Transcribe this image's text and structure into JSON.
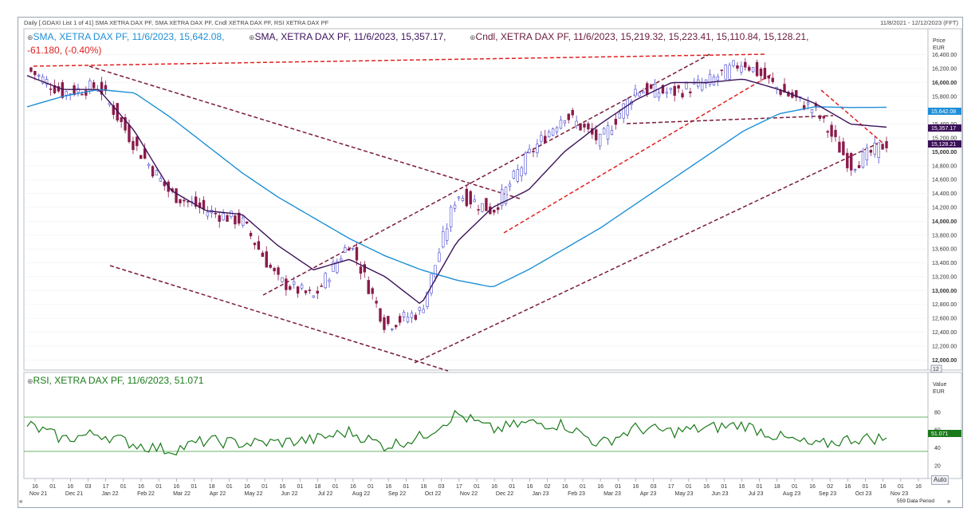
{
  "header": {
    "title_left": "Daily [.GDAXI List 1 of 41] SMA XETRA DAX PF, SMA XETRA DAX PF, Cndl XETRA DAX PF, RSI XETRA DAX PF",
    "title_right": "11/8/2021 - 12/12/2023 (FFT)"
  },
  "legend": {
    "sma_fast": "SMA, XETRA DAX PF, 11/6/2023, 15,642.08,",
    "sma_slow": "SMA, XETRA DAX PF, 11/6/2023, 15,357.17,",
    "cndl": "Cndl, XETRA DAX PF, 11/6/2023, 15,219.32, 15,223.41, 15,110.84, 15,128.21,",
    "change": "-61.180, (-0.40%)",
    "rsi": "RSI, XETRA DAX PF, 11/6/2023, 51.071"
  },
  "price_axis": {
    "title": "Price",
    "unit": "EUR",
    "ticks": [
      "16,400.00",
      "16,200.00",
      "16,000.00",
      "15,800.00",
      "15,600.00",
      "15,400.00",
      "15,200.00",
      "15,000.00",
      "14,800.00",
      "14,600.00",
      "14,400.00",
      "14,200.00",
      "14,000.00",
      "13,800.00",
      "13,600.00",
      "13,400.00",
      "13,200.00",
      "13,000.00",
      "12,800.00",
      "12,600.00",
      "12,400.00",
      "12,200.00",
      "12,000.00"
    ],
    "tag_sma_fast": "15,642.08",
    "tag_sma_slow": "15,357.17",
    "tag_price": "15,128.21",
    "scale_button": "12"
  },
  "rsi_axis": {
    "title": "Value",
    "unit": "EUR",
    "ticks": [
      "80",
      "60",
      "40",
      "20"
    ],
    "tag": "51.071"
  },
  "x_axis": {
    "days": [
      "16",
      "01",
      "16",
      "03",
      "17",
      "01",
      "16",
      "01",
      "16",
      "01",
      "18",
      "01",
      "16",
      "01",
      "16",
      "01",
      "18",
      "01",
      "16",
      "01",
      "16",
      "01",
      "16",
      "03",
      "17",
      "01",
      "16",
      "01",
      "16",
      "02",
      "16",
      "01",
      "16",
      "01",
      "16",
      "03",
      "17",
      "01",
      "16",
      "01",
      "16",
      "01",
      "18",
      "01",
      "16",
      "02",
      "16",
      "01",
      "16",
      "01",
      "16"
    ],
    "months": [
      "Nov 21",
      "Dec 21",
      "Jan 22",
      "Feb 22",
      "Mar 22",
      "Apr 22",
      "May 22",
      "Jun 22",
      "Jul 22",
      "Aug 22",
      "Sep 22",
      "Oct 22",
      "Nov 22",
      "Dec 22",
      "Jan 23",
      "Feb 23",
      "Mar 23",
      "Apr 23",
      "May 23",
      "Jun 23",
      "Jul 23",
      "Aug 23",
      "Sep 23",
      "Oct 23",
      "Nov 23"
    ]
  },
  "status_bar": {
    "data_period": "559 Data Period",
    "auto_button": "Auto"
  },
  "colors": {
    "sma_fast": "#1e8fd6",
    "sma_slow": "#3b1159",
    "candle_up": "#4a4ad0",
    "candle_down": "#8a1a4a",
    "rsi": "#1a7a1a",
    "change": "#e02020",
    "trend_red": "#e02020",
    "trend_maroon": "#7a1a3a"
  },
  "chart_data": [
    {
      "type": "candlestick",
      "title": "",
      "ylabel": "Price (EUR)",
      "ylim": [
        11900,
        16500
      ],
      "series": [
        {
          "name": "Cndl",
          "close_x": [
            "Nov 21",
            "Dec 21",
            "Jan 22",
            "Feb 22",
            "Mar 22",
            "Apr 22",
            "May 22",
            "Jun 22",
            "Jul 22",
            "Aug 22",
            "Sep 22",
            "Oct 22",
            "Nov 22",
            "Dec 22",
            "Jan 23",
            "Feb 23",
            "Mar 23",
            "Apr 23",
            "May 23",
            "Jun 23",
            "Jul 23",
            "Aug 23",
            "Sep 23",
            "Oct 23",
            "Nov 23"
          ],
          "close_values": [
            16200,
            15850,
            15950,
            15100,
            14400,
            14150,
            14000,
            13150,
            12900,
            13700,
            12500,
            12700,
            14400,
            14150,
            14950,
            15550,
            15150,
            15900,
            15850,
            16000,
            16300,
            15900,
            15600,
            14800,
            15128
          ]
        },
        {
          "name": "SMA",
          "label": "15,642.08",
          "values": [
            15650,
            15800,
            15900,
            15850,
            15500,
            15100,
            14700,
            14350,
            14050,
            13750,
            13500,
            13300,
            13150,
            13050,
            13300,
            13600,
            13900,
            14250,
            14600,
            14950,
            15300,
            15550,
            15650,
            15640,
            15642
          ]
        },
        {
          "name": "SMA",
          "label": "15,357.17",
          "values": [
            16100,
            15900,
            15900,
            15300,
            14450,
            14150,
            14100,
            13650,
            13300,
            13450,
            13200,
            12800,
            13700,
            14200,
            14450,
            15000,
            15400,
            15750,
            16000,
            16000,
            16050,
            15900,
            15700,
            15400,
            15357
          ]
        }
      ]
    },
    {
      "type": "line",
      "title": "",
      "ylabel": "Value",
      "ylim": [
        10,
        95
      ],
      "reference_lines": [
        70,
        30
      ],
      "series": [
        {
          "name": "RSI",
          "values": [
            66,
            50,
            56,
            44,
            37,
            48,
            45,
            46,
            49,
            58,
            42,
            52,
            78,
            60,
            68,
            66,
            44,
            62,
            58,
            62,
            66,
            52,
            42,
            50,
            51.071
          ]
        }
      ]
    }
  ]
}
